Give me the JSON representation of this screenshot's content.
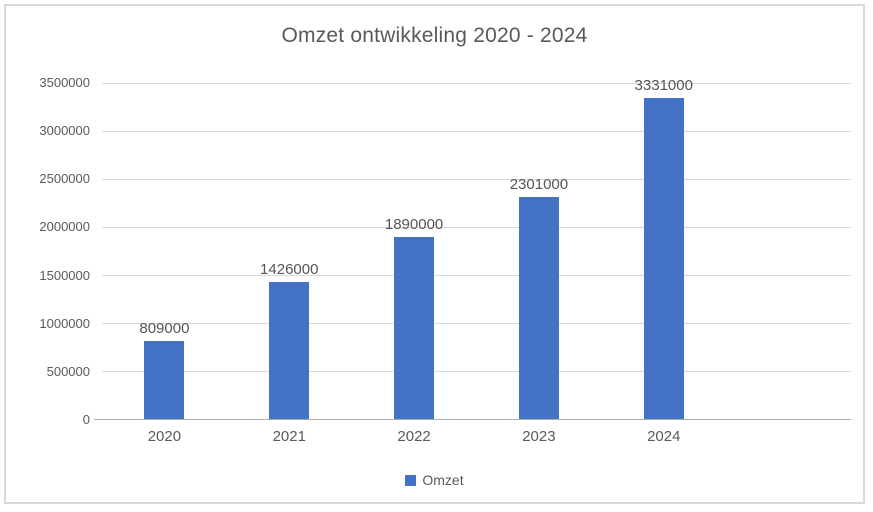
{
  "chart_data": {
    "type": "bar",
    "title": "Omzet ontwikkeling 2020 - 2024",
    "categories": [
      "2020",
      "2021",
      "2022",
      "2023",
      "2024"
    ],
    "series": [
      {
        "name": "Omzet",
        "values": [
          809000,
          1426000,
          1890000,
          2301000,
          3331000
        ]
      }
    ],
    "xlabel": "",
    "ylabel": "",
    "ylim": [
      0,
      3500000
    ],
    "ytick_interval": 500000,
    "yticks": [
      0,
      500000,
      1000000,
      1500000,
      2000000,
      2500000,
      3000000,
      3500000
    ],
    "data_labels_shown": true,
    "grid": true,
    "legend_position": "bottom",
    "legend_entries": [
      "Omzet"
    ],
    "layout_hints": {
      "category_slots": 6,
      "bars_fill_first_slots": 5
    },
    "colors": {
      "bar": "#4472c4",
      "gridline": "#d9d9d9",
      "axis_line": "#ababab",
      "text": "#595959",
      "frame_border": "#d9d9d9",
      "background": "#ffffff"
    }
  }
}
